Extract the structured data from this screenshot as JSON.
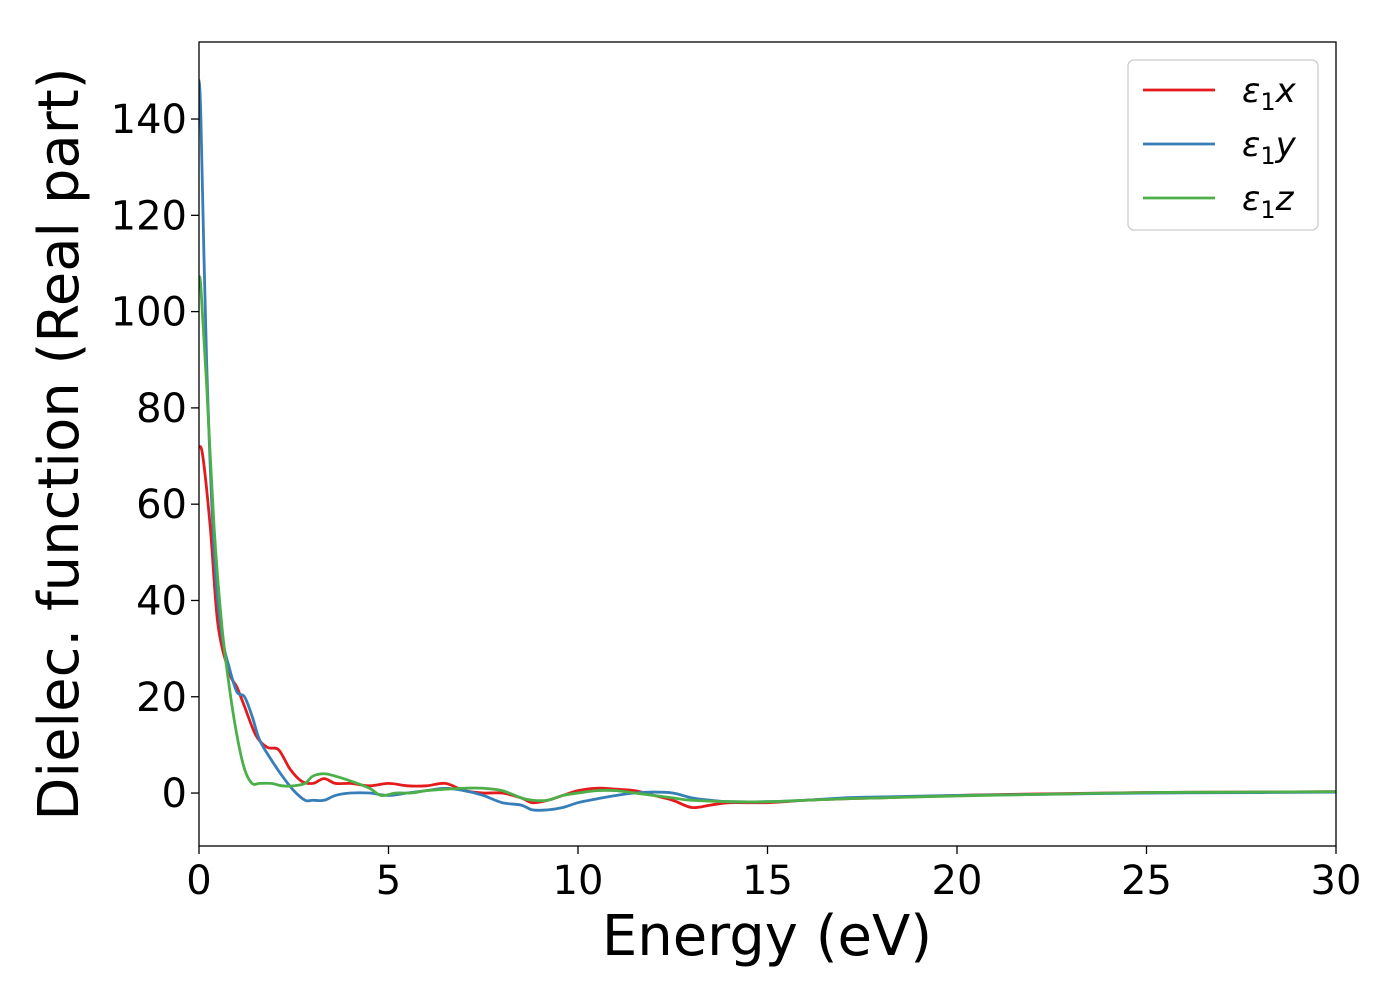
{
  "chart_data": {
    "type": "line",
    "xlabel": "Energy (eV)",
    "ylabel": "Dielec. function (Real part)",
    "xlim": [
      0,
      30
    ],
    "ylim": [
      -11,
      156
    ],
    "xticks": [
      0,
      5,
      10,
      15,
      20,
      25,
      30
    ],
    "yticks": [
      0,
      20,
      40,
      60,
      80,
      100,
      120,
      140
    ],
    "grid": false,
    "legend_position": "top-right",
    "series": [
      {
        "name": "ε1x",
        "symbol": "ε",
        "sub": "1",
        "axis": "x",
        "color": "#e41a1c",
        "x": [
          0,
          0.1,
          0.3,
          0.5,
          0.8,
          1.0,
          1.2,
          1.5,
          1.8,
          2.1,
          2.4,
          2.7,
          3.0,
          3.3,
          3.6,
          4.0,
          4.5,
          5.0,
          5.5,
          6.0,
          6.5,
          7.0,
          7.5,
          8.0,
          8.5,
          8.8,
          9.2,
          9.6,
          10.0,
          10.5,
          11.0,
          11.5,
          12.0,
          12.5,
          13.0,
          13.5,
          14.0,
          15.0,
          16.0,
          17.0,
          18.0,
          20.0,
          22.0,
          25.0,
          28.0,
          30.0
        ],
        "y": [
          72,
          70,
          55,
          35,
          25,
          22,
          18,
          12,
          9.5,
          9,
          5,
          2.5,
          2,
          3,
          2,
          2,
          1.5,
          2,
          1.5,
          1.5,
          2,
          0.5,
          0,
          0,
          -1,
          -2,
          -1.5,
          -0.5,
          0.5,
          1,
          0.8,
          0.5,
          -0.5,
          -1.5,
          -3,
          -2.5,
          -2,
          -2,
          -1.5,
          -1.2,
          -1,
          -0.5,
          -0.2,
          0.1,
          0.2,
          0.3
        ]
      },
      {
        "name": "ε1y",
        "symbol": "ε",
        "sub": "1",
        "axis": "y",
        "color": "#377eb8",
        "x": [
          0,
          0.05,
          0.2,
          0.4,
          0.6,
          0.8,
          1.0,
          1.2,
          1.4,
          1.6,
          1.9,
          2.2,
          2.5,
          2.8,
          3.0,
          3.3,
          3.6,
          4.0,
          4.5,
          5.0,
          5.5,
          6.0,
          6.5,
          7.0,
          7.5,
          8.0,
          8.5,
          8.8,
          9.2,
          9.6,
          10.0,
          10.5,
          11.0,
          11.5,
          12.0,
          12.5,
          13.0,
          13.5,
          14.0,
          15.0,
          16.0,
          17.0,
          18.0,
          20.0,
          22.0,
          25.0,
          28.0,
          30.0
        ],
        "y": [
          148,
          140,
          90,
          50,
          33,
          26,
          21,
          20,
          16,
          11,
          7,
          3.5,
          0.5,
          -1.5,
          -1.5,
          -1.5,
          -0.5,
          0,
          0,
          -0.5,
          0,
          0.5,
          1,
          0.5,
          -0.5,
          -2,
          -2.5,
          -3.5,
          -3.5,
          -3,
          -2,
          -1.2,
          -0.5,
          0,
          0.2,
          0,
          -1,
          -1.5,
          -1.8,
          -1.8,
          -1.5,
          -1,
          -0.8,
          -0.5,
          -0.3,
          0,
          0.1,
          0.2
        ]
      },
      {
        "name": "ε1z",
        "symbol": "ε",
        "sub": "1",
        "axis": "z",
        "color": "#4daf4a",
        "x": [
          0,
          0.05,
          0.2,
          0.4,
          0.6,
          0.8,
          1.0,
          1.2,
          1.4,
          1.6,
          1.9,
          2.2,
          2.5,
          2.8,
          3.0,
          3.3,
          3.6,
          4.0,
          4.5,
          4.8,
          5.2,
          5.6,
          6.0,
          6.5,
          7.0,
          7.5,
          8.0,
          8.5,
          8.8,
          9.2,
          9.6,
          10.0,
          10.5,
          11.0,
          11.5,
          12.0,
          12.5,
          13.0,
          14.0,
          15.0,
          16.0,
          17.0,
          18.0,
          20.0,
          22.0,
          25.0,
          28.0,
          30.0
        ],
        "y": [
          107,
          105,
          85,
          55,
          35,
          22,
          12,
          5,
          2,
          2,
          2,
          1.5,
          1.5,
          2,
          3.5,
          4,
          3.5,
          2.5,
          1,
          -0.5,
          0,
          0,
          0.5,
          0.8,
          1,
          1,
          0.5,
          -1,
          -1.5,
          -1.5,
          -0.5,
          0,
          0.5,
          0.5,
          0,
          -0.5,
          -1,
          -1.5,
          -1.8,
          -1.8,
          -1.5,
          -1.2,
          -1,
          -0.6,
          -0.3,
          0.1,
          0.2,
          0.3
        ]
      }
    ]
  }
}
